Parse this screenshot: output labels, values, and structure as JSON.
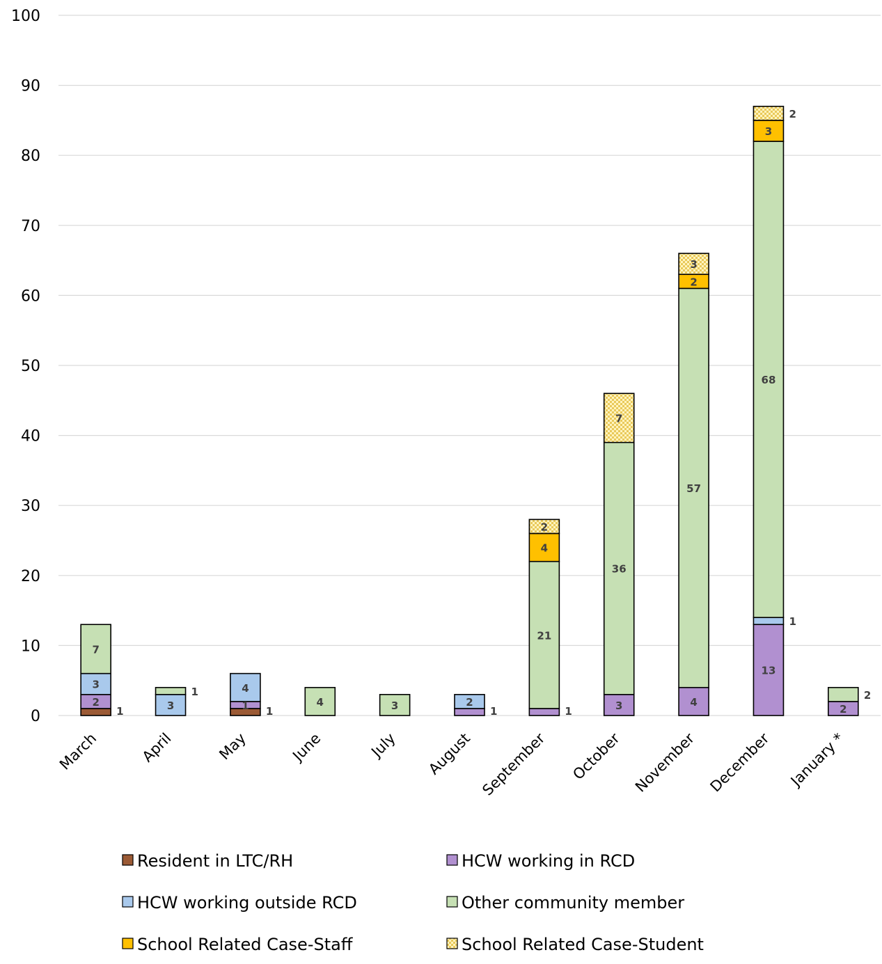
{
  "chart_data": {
    "type": "bar",
    "stacked": true,
    "title": "",
    "xlabel": "",
    "ylabel": "",
    "ylim": [
      0,
      100
    ],
    "yticks": [
      0,
      10,
      20,
      30,
      40,
      50,
      60,
      70,
      80,
      90,
      100
    ],
    "grid": true,
    "legend_position": "bottom",
    "categories": [
      "March",
      "April",
      "May",
      "June",
      "July",
      "August",
      "September",
      "October",
      "November",
      "December",
      "January *"
    ],
    "series": [
      {
        "name": "Resident in LTC/RH",
        "color": "#9b5a35",
        "pattern": "solid",
        "values": [
          1,
          0,
          1,
          0,
          0,
          0,
          0,
          0,
          0,
          0,
          0
        ]
      },
      {
        "name": "HCW working in RCD",
        "color": "#b190d0",
        "pattern": "solid",
        "values": [
          2,
          0,
          1,
          0,
          0,
          1,
          1,
          3,
          4,
          13,
          2
        ]
      },
      {
        "name": "HCW working outside RCD",
        "color": "#a9c9ec",
        "pattern": "solid",
        "values": [
          3,
          3,
          4,
          0,
          0,
          2,
          0,
          0,
          0,
          1,
          0
        ]
      },
      {
        "name": "Other community member",
        "color": "#c6e0b4",
        "pattern": "solid",
        "values": [
          7,
          1,
          0,
          4,
          3,
          0,
          21,
          36,
          57,
          68,
          2
        ]
      },
      {
        "name": "School Related Case-Staff",
        "color": "#ffc000",
        "pattern": "solid",
        "values": [
          0,
          0,
          0,
          0,
          0,
          0,
          4,
          0,
          2,
          3,
          0
        ]
      },
      {
        "name": "School Related Case-Student",
        "color": "#fff2b0",
        "pattern": "checker",
        "values": [
          0,
          0,
          0,
          0,
          0,
          0,
          2,
          7,
          3,
          2,
          0
        ]
      }
    ],
    "data_labels": [
      {
        "category": "March",
        "series": "Resident in LTC/RH",
        "text": "1",
        "placement": "outside"
      },
      {
        "category": "March",
        "series": "HCW working in RCD",
        "text": "2",
        "placement": "inside"
      },
      {
        "category": "March",
        "series": "HCW working outside RCD",
        "text": "3",
        "placement": "inside"
      },
      {
        "category": "March",
        "series": "Other community member",
        "text": "7",
        "placement": "inside"
      },
      {
        "category": "April",
        "series": "HCW working outside RCD",
        "text": "3",
        "placement": "inside"
      },
      {
        "category": "April",
        "series": "Other community member",
        "text": "1",
        "placement": "outside"
      },
      {
        "category": "May",
        "series": "Resident in LTC/RH",
        "text": "1",
        "placement": "outside"
      },
      {
        "category": "May",
        "series": "HCW working in RCD",
        "text": "1",
        "placement": "inside"
      },
      {
        "category": "May",
        "series": "HCW working outside RCD",
        "text": "4",
        "placement": "inside"
      },
      {
        "category": "June",
        "series": "Other community member",
        "text": "4",
        "placement": "inside"
      },
      {
        "category": "July",
        "series": "Other community member",
        "text": "3",
        "placement": "inside"
      },
      {
        "category": "August",
        "series": "HCW working in RCD",
        "text": "1",
        "placement": "outside"
      },
      {
        "category": "August",
        "series": "HCW working outside RCD",
        "text": "2",
        "placement": "inside"
      },
      {
        "category": "September",
        "series": "HCW working in RCD",
        "text": "1",
        "placement": "outside"
      },
      {
        "category": "September",
        "series": "Other community member",
        "text": "21",
        "placement": "inside"
      },
      {
        "category": "September",
        "series": "School Related Case-Staff",
        "text": "4",
        "placement": "inside"
      },
      {
        "category": "September",
        "series": "School Related Case-Student",
        "text": "2",
        "placement": "inside"
      },
      {
        "category": "October",
        "series": "HCW working in RCD",
        "text": "3",
        "placement": "inside"
      },
      {
        "category": "October",
        "series": "Other community member",
        "text": "36",
        "placement": "inside"
      },
      {
        "category": "October",
        "series": "School Related Case-Student",
        "text": "7",
        "placement": "inside"
      },
      {
        "category": "November",
        "series": "HCW working in RCD",
        "text": "4",
        "placement": "inside"
      },
      {
        "category": "November",
        "series": "Other community member",
        "text": "57",
        "placement": "inside"
      },
      {
        "category": "November",
        "series": "School Related Case-Staff",
        "text": "2",
        "placement": "inside"
      },
      {
        "category": "November",
        "series": "School Related Case-Student",
        "text": "3",
        "placement": "inside"
      },
      {
        "category": "December",
        "series": "HCW working in RCD",
        "text": "13",
        "placement": "inside"
      },
      {
        "category": "December",
        "series": "HCW working outside RCD",
        "text": "1",
        "placement": "outside"
      },
      {
        "category": "December",
        "series": "Other community member",
        "text": "68",
        "placement": "inside"
      },
      {
        "category": "December",
        "series": "School Related Case-Staff",
        "text": "3",
        "placement": "inside"
      },
      {
        "category": "December",
        "series": "School Related Case-Student",
        "text": "2",
        "placement": "outside"
      },
      {
        "category": "January *",
        "series": "HCW working in RCD",
        "text": "2",
        "placement": "inside"
      },
      {
        "category": "January *",
        "series": "Other community member",
        "text": "2",
        "placement": "outside"
      }
    ]
  }
}
